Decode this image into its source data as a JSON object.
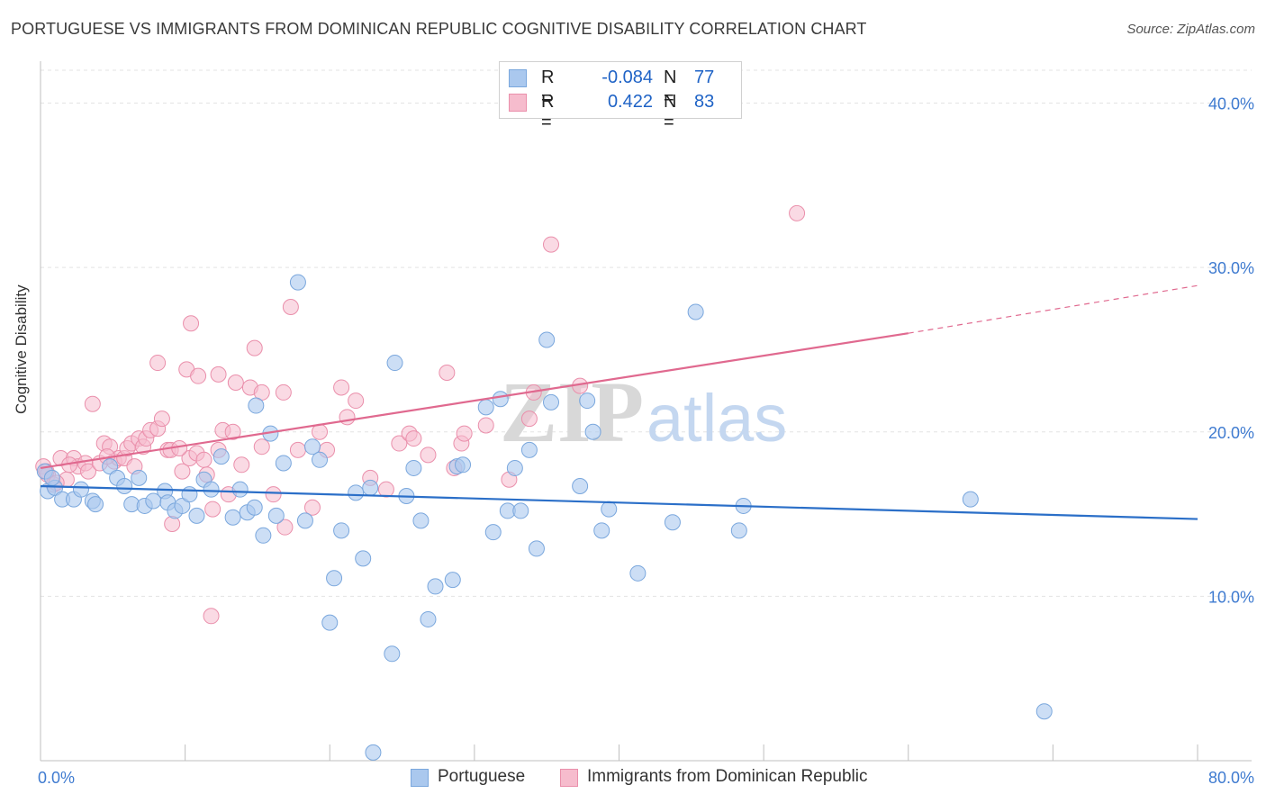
{
  "title": "PORTUGUESE VS IMMIGRANTS FROM DOMINICAN REPUBLIC COGNITIVE DISABILITY CORRELATION CHART",
  "source": "Source: ZipAtlas.com",
  "watermark": {
    "zip": "ZIP",
    "atlas": "atlas"
  },
  "colors": {
    "blue_fill": "#aac8ee",
    "blue_stroke": "#7aa7dd",
    "blue_line": "#2b6fc8",
    "pink_fill": "#f6bccd",
    "pink_stroke": "#ea8fab",
    "pink_line": "#e0698f",
    "axis_text": "#3f7bd0",
    "grid": "#e3e3e3"
  },
  "legend": {
    "rows": [
      {
        "r_label": "R =",
        "r_value": "-0.084",
        "n_label": "N =",
        "n_value": "77"
      },
      {
        "r_label": "R =",
        "r_value": "0.422",
        "n_label": "N =",
        "n_value": "83"
      }
    ]
  },
  "bottom_legend": {
    "blue": "Portuguese",
    "pink": "Immigrants from Dominican Republic"
  },
  "chart_data": {
    "type": "scatter",
    "title": "PORTUGUESE VS IMMIGRANTS FROM DOMINICAN REPUBLIC COGNITIVE DISABILITY CORRELATION CHART",
    "xlabel": "",
    "ylabel": "Cognitive Disability",
    "xlim": [
      0,
      80
    ],
    "ylim": [
      0,
      42
    ],
    "x_tick_labels": [
      "0.0%",
      "80.0%"
    ],
    "y_ticks": [
      10,
      20,
      30,
      40
    ],
    "y_tick_labels": [
      "10.0%",
      "20.0%",
      "30.0%",
      "40.0%"
    ],
    "grid": true,
    "legend_position": "top-center",
    "series": [
      {
        "name": "Portuguese",
        "color": "#aac8ee",
        "trend": {
          "x": [
            0,
            80
          ],
          "y": [
            16.7,
            14.7
          ],
          "dashed_from": null
        },
        "points": [
          [
            0.3,
            17.6
          ],
          [
            0.5,
            16.4
          ],
          [
            1.0,
            16.6
          ],
          [
            1.5,
            15.9
          ],
          [
            2.3,
            15.9
          ],
          [
            2.8,
            16.5
          ],
          [
            3.6,
            15.8
          ],
          [
            3.8,
            15.6
          ],
          [
            4.8,
            17.9
          ],
          [
            5.3,
            17.2
          ],
          [
            5.8,
            16.7
          ],
          [
            6.3,
            15.6
          ],
          [
            6.8,
            17.2
          ],
          [
            7.2,
            15.5
          ],
          [
            7.8,
            15.8
          ],
          [
            8.6,
            16.4
          ],
          [
            8.8,
            15.7
          ],
          [
            9.3,
            15.2
          ],
          [
            9.8,
            15.5
          ],
          [
            10.3,
            16.2
          ],
          [
            10.8,
            14.9
          ],
          [
            11.3,
            17.1
          ],
          [
            11.8,
            16.5
          ],
          [
            12.5,
            18.5
          ],
          [
            13.3,
            14.8
          ],
          [
            13.8,
            16.5
          ],
          [
            14.3,
            15.1
          ],
          [
            14.8,
            15.4
          ],
          [
            14.9,
            21.6
          ],
          [
            15.4,
            13.7
          ],
          [
            15.9,
            19.9
          ],
          [
            16.3,
            14.9
          ],
          [
            16.8,
            18.1
          ],
          [
            17.8,
            29.1
          ],
          [
            18.3,
            14.6
          ],
          [
            18.8,
            19.1
          ],
          [
            19.3,
            18.3
          ],
          [
            20.0,
            8.4
          ],
          [
            20.3,
            11.1
          ],
          [
            20.8,
            14.0
          ],
          [
            21.8,
            16.3
          ],
          [
            22.3,
            12.3
          ],
          [
            22.8,
            16.6
          ],
          [
            23.0,
            0.5
          ],
          [
            24.3,
            6.5
          ],
          [
            24.5,
            24.2
          ],
          [
            25.3,
            16.1
          ],
          [
            25.8,
            17.8
          ],
          [
            26.3,
            14.6
          ],
          [
            26.8,
            8.6
          ],
          [
            27.3,
            10.6
          ],
          [
            28.5,
            11.0
          ],
          [
            28.8,
            17.9
          ],
          [
            29.2,
            18.0
          ],
          [
            30.8,
            21.5
          ],
          [
            31.3,
            13.9
          ],
          [
            31.8,
            22.0
          ],
          [
            32.3,
            15.2
          ],
          [
            32.8,
            17.8
          ],
          [
            33.2,
            15.2
          ],
          [
            33.8,
            18.9
          ],
          [
            34.3,
            12.9
          ],
          [
            35.0,
            25.6
          ],
          [
            35.3,
            21.8
          ],
          [
            37.3,
            16.7
          ],
          [
            37.8,
            21.9
          ],
          [
            38.2,
            20.0
          ],
          [
            38.8,
            14.0
          ],
          [
            39.3,
            15.3
          ],
          [
            41.3,
            11.4
          ],
          [
            43.7,
            14.5
          ],
          [
            45.3,
            27.3
          ],
          [
            48.3,
            14.0
          ],
          [
            48.6,
            15.5
          ],
          [
            64.3,
            15.9
          ],
          [
            69.4,
            3.0
          ],
          [
            0.8,
            17.2
          ]
        ]
      },
      {
        "name": "Immigrants from Dominican Republic",
        "color": "#f6bccd",
        "trend": {
          "x": [
            0,
            60,
            80
          ],
          "y": [
            17.8,
            26.0,
            28.9
          ],
          "dashed_from": 60
        },
        "points": [
          [
            0.2,
            17.9
          ],
          [
            0.5,
            17.4
          ],
          [
            0.9,
            16.8
          ],
          [
            1.4,
            18.4
          ],
          [
            1.8,
            17.1
          ],
          [
            2.3,
            18.4
          ],
          [
            2.6,
            17.9
          ],
          [
            3.1,
            18.1
          ],
          [
            3.3,
            17.6
          ],
          [
            3.6,
            21.7
          ],
          [
            4.1,
            18.1
          ],
          [
            4.4,
            19.3
          ],
          [
            4.8,
            19.1
          ],
          [
            5.1,
            18.2
          ],
          [
            5.4,
            18.4
          ],
          [
            5.8,
            18.4
          ],
          [
            6.0,
            19.0
          ],
          [
            6.3,
            19.3
          ],
          [
            6.5,
            17.9
          ],
          [
            6.8,
            19.6
          ],
          [
            7.1,
            19.1
          ],
          [
            7.3,
            19.6
          ],
          [
            7.6,
            20.1
          ],
          [
            8.1,
            20.2
          ],
          [
            8.1,
            24.2
          ],
          [
            8.4,
            20.8
          ],
          [
            8.8,
            18.9
          ],
          [
            9.0,
            18.9
          ],
          [
            9.1,
            14.4
          ],
          [
            9.8,
            17.6
          ],
          [
            10.1,
            23.8
          ],
          [
            10.3,
            18.4
          ],
          [
            10.4,
            26.6
          ],
          [
            10.8,
            18.7
          ],
          [
            10.9,
            23.4
          ],
          [
            11.3,
            18.3
          ],
          [
            11.5,
            17.4
          ],
          [
            11.9,
            15.3
          ],
          [
            11.8,
            8.8
          ],
          [
            12.3,
            23.5
          ],
          [
            12.3,
            18.9
          ],
          [
            12.6,
            20.1
          ],
          [
            13.0,
            16.2
          ],
          [
            13.3,
            20.0
          ],
          [
            13.5,
            23.0
          ],
          [
            13.9,
            18.0
          ],
          [
            14.5,
            22.7
          ],
          [
            14.8,
            25.1
          ],
          [
            15.3,
            19.1
          ],
          [
            15.3,
            22.4
          ],
          [
            16.1,
            16.2
          ],
          [
            16.8,
            22.4
          ],
          [
            16.9,
            14.2
          ],
          [
            17.3,
            27.6
          ],
          [
            17.8,
            18.9
          ],
          [
            18.8,
            15.4
          ],
          [
            19.3,
            20.0
          ],
          [
            19.8,
            18.9
          ],
          [
            20.8,
            22.7
          ],
          [
            21.2,
            20.9
          ],
          [
            21.8,
            21.9
          ],
          [
            22.8,
            17.2
          ],
          [
            23.9,
            16.5
          ],
          [
            24.8,
            19.3
          ],
          [
            25.5,
            19.9
          ],
          [
            25.8,
            19.6
          ],
          [
            26.8,
            18.6
          ],
          [
            28.1,
            23.6
          ],
          [
            28.6,
            17.8
          ],
          [
            29.1,
            19.3
          ],
          [
            29.3,
            19.9
          ],
          [
            30.8,
            20.4
          ],
          [
            32.4,
            17.1
          ],
          [
            33.8,
            20.8
          ],
          [
            34.1,
            22.4
          ],
          [
            35.3,
            31.4
          ],
          [
            37.3,
            22.8
          ],
          [
            52.3,
            33.3
          ],
          [
            0.4,
            17.6
          ],
          [
            1.1,
            16.9
          ],
          [
            2.0,
            18.0
          ],
          [
            4.6,
            18.5
          ],
          [
            9.6,
            19.0
          ]
        ]
      }
    ]
  }
}
